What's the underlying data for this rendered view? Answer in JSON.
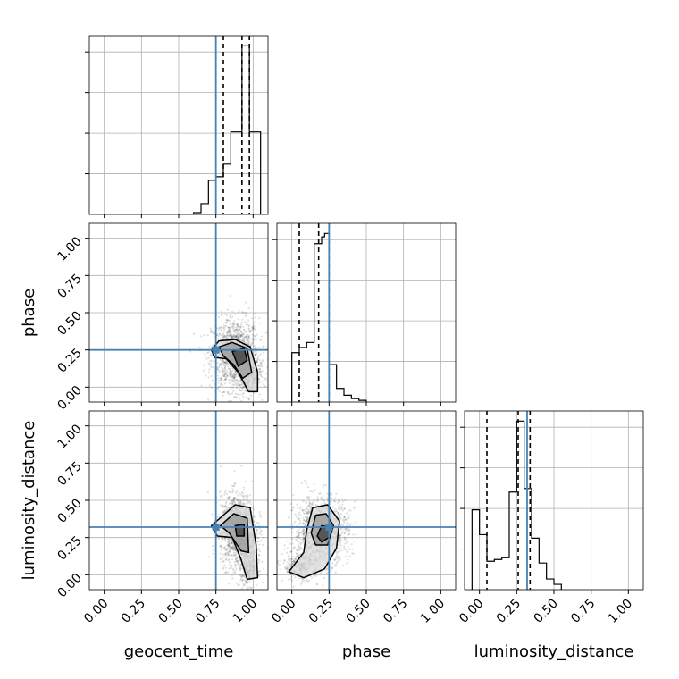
{
  "chart_data": {
    "type": "corner",
    "parameters": [
      "geocent_time",
      "phase",
      "luminosity_distance"
    ],
    "axis_range": [
      -0.1,
      1.1
    ],
    "tick_values": [
      0,
      0.25,
      0.5,
      0.75,
      1.0
    ],
    "tick_labels": [
      "0.00",
      "0.25",
      "0.50",
      "0.75",
      "1.00"
    ],
    "grid": true,
    "truth": {
      "geocent_time": 0.75,
      "phase": 0.25,
      "luminosity_distance": 0.32
    },
    "truth_color": "#4682b4",
    "line_color": "#000000",
    "histograms": [
      {
        "parameter": "geocent_time",
        "bins": [
          0.6,
          0.65,
          0.7,
          0.75,
          0.8,
          0.85,
          0.9,
          0.925,
          0.95,
          0.975,
          1.0,
          1.05
        ],
        "counts": [
          0.01,
          0.06,
          0.19,
          0.21,
          0.28,
          0.46,
          0.46,
          0.94,
          0.94,
          0.46,
          0.46
        ],
        "quantiles": [
          0.8,
          0.925,
          0.975
        ]
      },
      {
        "parameter": "phase",
        "bins": [
          0.0,
          0.05,
          0.1,
          0.15,
          0.2,
          0.22,
          0.25,
          0.3,
          0.35,
          0.4,
          0.45,
          0.5
        ],
        "counts": [
          0.29,
          0.32,
          0.35,
          0.93,
          0.97,
          0.99,
          0.22,
          0.08,
          0.04,
          0.02,
          0.01
        ],
        "quantiles": [
          0.05,
          0.18,
          0.25
        ]
      },
      {
        "parameter": "luminosity_distance",
        "bins": [
          -0.05,
          0.0,
          0.05,
          0.1,
          0.15,
          0.2,
          0.25,
          0.3,
          0.35,
          0.4,
          0.45,
          0.5,
          0.55
        ],
        "counts": [
          0.45,
          0.31,
          0.16,
          0.17,
          0.18,
          0.55,
          0.95,
          0.57,
          0.29,
          0.15,
          0.06,
          0.03
        ],
        "quantiles": [
          0.05,
          0.26,
          0.34
        ]
      }
    ],
    "scatter_panels": [
      {
        "x_parameter": "geocent_time",
        "y_parameter": "phase",
        "clusters": [
          {
            "cx": 0.88,
            "cy": 0.22,
            "sx": 0.08,
            "sy": 0.12,
            "n": 1300
          },
          {
            "cx": 0.97,
            "cy": 0.08,
            "sx": 0.04,
            "sy": 0.07,
            "n": 300
          }
        ],
        "contours": [
          [
            [
              0.72,
              0.25
            ],
            [
              0.77,
              0.31
            ],
            [
              0.88,
              0.32
            ],
            [
              0.98,
              0.27
            ],
            [
              1.03,
              0.1
            ],
            [
              1.03,
              -0.03
            ],
            [
              0.97,
              -0.03
            ],
            [
              0.9,
              0.1
            ],
            [
              0.82,
              0.19
            ],
            [
              0.74,
              0.2
            ]
          ],
          [
            [
              0.77,
              0.27
            ],
            [
              0.86,
              0.3
            ],
            [
              0.96,
              0.26
            ],
            [
              0.99,
              0.1
            ],
            [
              0.93,
              0.06
            ],
            [
              0.87,
              0.15
            ],
            [
              0.8,
              0.21
            ]
          ],
          [
            [
              0.86,
              0.24
            ],
            [
              0.94,
              0.26
            ],
            [
              0.96,
              0.18
            ],
            [
              0.9,
              0.14
            ]
          ]
        ]
      },
      {
        "x_parameter": "geocent_time",
        "y_parameter": "luminosity_distance",
        "clusters": [
          {
            "cx": 0.9,
            "cy": 0.3,
            "sx": 0.06,
            "sy": 0.12,
            "n": 1400
          },
          {
            "cx": 0.97,
            "cy": 0.05,
            "sx": 0.03,
            "sy": 0.06,
            "n": 300
          }
        ],
        "contours": [
          [
            [
              0.72,
              0.33
            ],
            [
              0.8,
              0.4
            ],
            [
              0.88,
              0.47
            ],
            [
              0.98,
              0.45
            ],
            [
              1.02,
              0.2
            ],
            [
              1.03,
              -0.02
            ],
            [
              0.96,
              -0.03
            ],
            [
              0.92,
              0.1
            ],
            [
              0.86,
              0.25
            ],
            [
              0.76,
              0.26
            ]
          ],
          [
            [
              0.78,
              0.33
            ],
            [
              0.87,
              0.41
            ],
            [
              0.96,
              0.38
            ],
            [
              0.97,
              0.15
            ],
            [
              0.92,
              0.16
            ],
            [
              0.84,
              0.28
            ]
          ],
          [
            [
              0.88,
              0.33
            ],
            [
              0.94,
              0.34
            ],
            [
              0.94,
              0.26
            ],
            [
              0.89,
              0.26
            ]
          ]
        ]
      },
      {
        "x_parameter": "phase",
        "y_parameter": "luminosity_distance",
        "clusters": [
          {
            "cx": 0.2,
            "cy": 0.3,
            "sx": 0.09,
            "sy": 0.11,
            "n": 1200
          },
          {
            "cx": 0.06,
            "cy": 0.06,
            "sx": 0.06,
            "sy": 0.05,
            "n": 300
          }
        ],
        "contours": [
          [
            [
              -0.02,
              0.02
            ],
            [
              0.08,
              0.15
            ],
            [
              0.1,
              0.3
            ],
            [
              0.14,
              0.45
            ],
            [
              0.24,
              0.47
            ],
            [
              0.32,
              0.36
            ],
            [
              0.3,
              0.18
            ],
            [
              0.22,
              0.04
            ],
            [
              0.08,
              -0.02
            ]
          ],
          [
            [
              0.13,
              0.28
            ],
            [
              0.16,
              0.4
            ],
            [
              0.23,
              0.41
            ],
            [
              0.28,
              0.33
            ],
            [
              0.24,
              0.2
            ],
            [
              0.16,
              0.2
            ]
          ],
          [
            [
              0.17,
              0.26
            ],
            [
              0.2,
              0.33
            ],
            [
              0.25,
              0.32
            ],
            [
              0.25,
              0.25
            ],
            [
              0.2,
              0.22
            ]
          ]
        ]
      }
    ]
  }
}
